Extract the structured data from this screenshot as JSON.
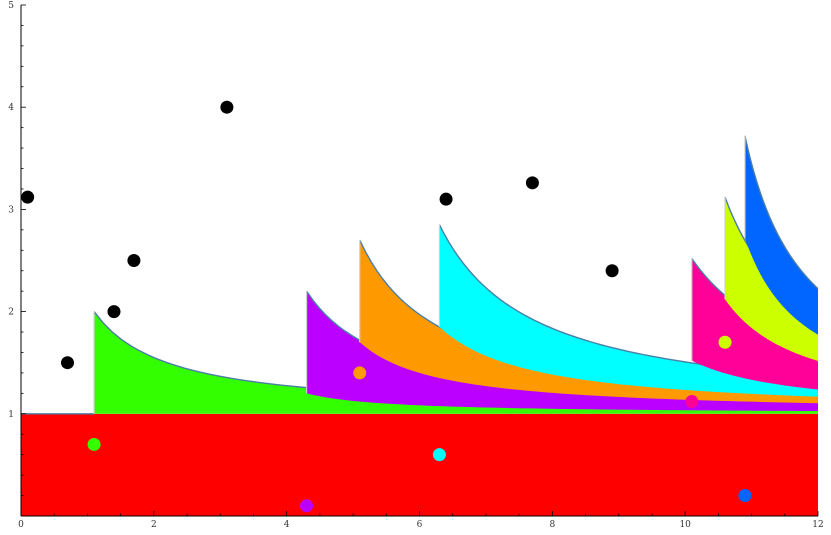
{
  "chart_data": {
    "type": "area",
    "title": "",
    "xlabel": "",
    "ylabel": "",
    "xlim": [
      0,
      12
    ],
    "ylim": [
      0,
      5
    ],
    "x_ticks": [
      "0",
      "2",
      "4",
      "6",
      "8",
      "10",
      "12"
    ],
    "y_ticks": [
      "1",
      "2",
      "3",
      "4",
      "5"
    ],
    "grid": false,
    "base_region": {
      "color": "#ff0000",
      "y_from": 0,
      "y_to": 1
    },
    "bands": [
      {
        "start": 1.1,
        "tops": [
          1.0,
          2.0
        ],
        "color": "#33ff00",
        "k": 1.1
      },
      {
        "start": 4.3,
        "tops": [
          1.2,
          2.2
        ],
        "color": "#bb00ff",
        "k": 1.2
      },
      {
        "start": 5.1,
        "tops": [
          1.7,
          2.7
        ],
        "color": "#ff9900",
        "k": 1.2
      },
      {
        "start": 6.3,
        "tops": [
          1.85,
          2.85
        ],
        "color": "#00ffff",
        "k": 1.4
      },
      {
        "start": 10.1,
        "tops": [
          1.52,
          2.52
        ],
        "color": "#ff0099",
        "k": 1.6
      },
      {
        "start": 10.6,
        "tops": [
          2.12,
          3.12
        ],
        "color": "#ccff00",
        "k": 1.2
      },
      {
        "start": 10.9,
        "tops": [
          2.72,
          3.72
        ],
        "color": "#0066ff",
        "k": 0.9
      }
    ],
    "points": [
      {
        "x": 0.1,
        "y": 3.12,
        "color": "#000000"
      },
      {
        "x": 0.7,
        "y": 1.5,
        "color": "#000000"
      },
      {
        "x": 1.1,
        "y": 0.7,
        "color": "#33ff00"
      },
      {
        "x": 1.4,
        "y": 2.0,
        "color": "#000000"
      },
      {
        "x": 1.7,
        "y": 2.5,
        "color": "#000000"
      },
      {
        "x": 3.1,
        "y": 4.0,
        "color": "#000000"
      },
      {
        "x": 4.3,
        "y": 0.1,
        "color": "#bb00ff"
      },
      {
        "x": 5.1,
        "y": 1.4,
        "color": "#ff9900"
      },
      {
        "x": 6.3,
        "y": 0.6,
        "color": "#00ffff"
      },
      {
        "x": 6.4,
        "y": 3.1,
        "color": "#000000"
      },
      {
        "x": 7.7,
        "y": 3.26,
        "color": "#000000"
      },
      {
        "x": 8.9,
        "y": 2.4,
        "color": "#000000"
      },
      {
        "x": 10.1,
        "y": 1.12,
        "color": "#ff0099"
      },
      {
        "x": 10.6,
        "y": 1.7,
        "color": "#ccff00"
      },
      {
        "x": 10.9,
        "y": 0.2,
        "color": "#0066ff"
      }
    ]
  }
}
